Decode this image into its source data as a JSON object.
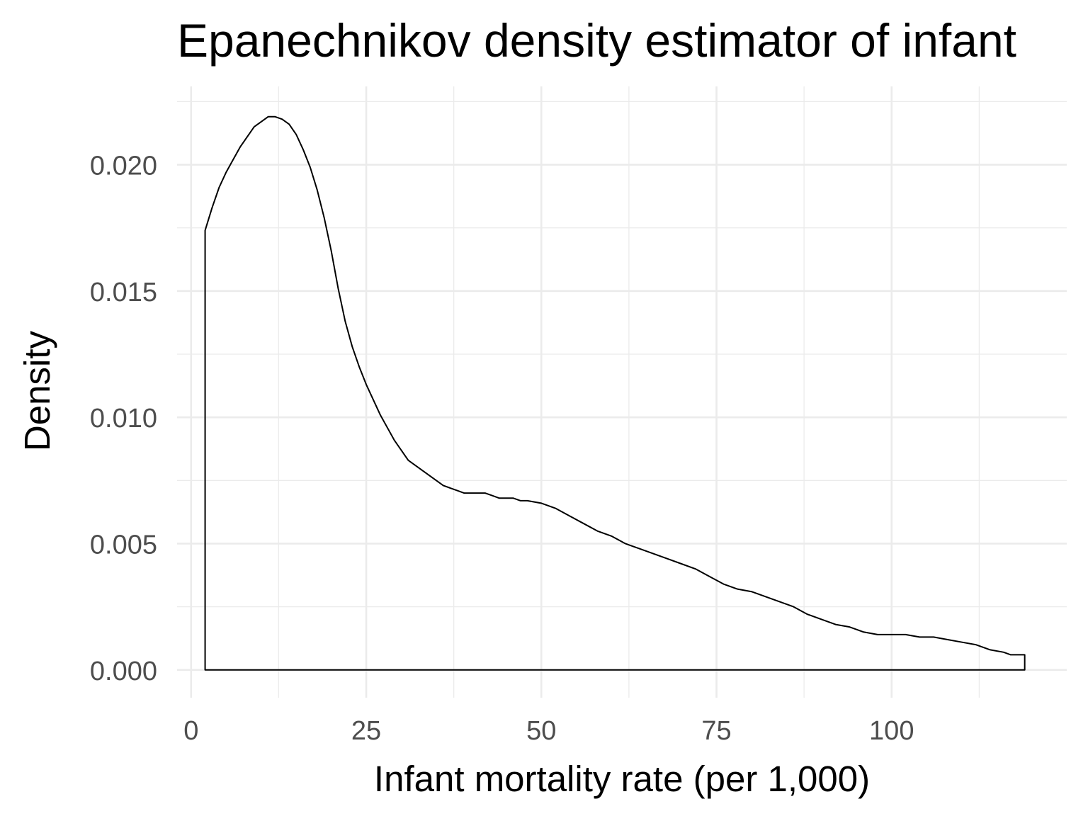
{
  "chart_data": {
    "type": "area",
    "title": "Epanechnikov density estimator of infant",
    "xlabel": "Infant mortality rate (per 1,000)",
    "ylabel": "Density",
    "xlim": [
      -2,
      125
    ],
    "ylim": [
      -0.0011,
      0.0231
    ],
    "x_ticks": [
      0,
      25,
      50,
      75,
      100
    ],
    "x_tick_labels": [
      "0",
      "25",
      "50",
      "75",
      "100"
    ],
    "x_minor_ticks": [
      12.5,
      37.5,
      62.5,
      87.5,
      112.5
    ],
    "y_ticks": [
      0,
      0.005,
      0.01,
      0.015,
      0.02
    ],
    "y_tick_labels": [
      "0.000",
      "0.005",
      "0.010",
      "0.015",
      "0.020"
    ],
    "y_minor_ticks": [
      0.0025,
      0.0075,
      0.0125,
      0.0175,
      0.0225
    ],
    "grid": true,
    "legend": "none",
    "series": [
      {
        "x": [
          2,
          3,
          4,
          5,
          6,
          7,
          8,
          9,
          10,
          11,
          12,
          13,
          14,
          15,
          16,
          17,
          18,
          19,
          20,
          21,
          22,
          23,
          24,
          25,
          26,
          27,
          28,
          29,
          30,
          31,
          32,
          33,
          34,
          35,
          36,
          37,
          38,
          39,
          40,
          42,
          43,
          44,
          45,
          46,
          47,
          48,
          50,
          52,
          54,
          56,
          58,
          60,
          62,
          64,
          66,
          68,
          70,
          72,
          74,
          76,
          78,
          80,
          82,
          84,
          86,
          88,
          90,
          92,
          94,
          96,
          98,
          100,
          102,
          104,
          106,
          108,
          110,
          112,
          114,
          116,
          117,
          118,
          119
        ],
        "y": [
          0.0174,
          0.0183,
          0.0191,
          0.0197,
          0.0202,
          0.0207,
          0.0211,
          0.0215,
          0.0217,
          0.0219,
          0.0219,
          0.0218,
          0.0216,
          0.0212,
          0.0206,
          0.0199,
          0.019,
          0.0179,
          0.0166,
          0.0151,
          0.0138,
          0.0128,
          0.012,
          0.0113,
          0.0107,
          0.0101,
          0.0096,
          0.0091,
          0.0087,
          0.0083,
          0.0081,
          0.0079,
          0.0077,
          0.0075,
          0.0073,
          0.0072,
          0.0071,
          0.007,
          0.007,
          0.007,
          0.0069,
          0.0068,
          0.0068,
          0.0068,
          0.0067,
          0.0067,
          0.0066,
          0.0064,
          0.0061,
          0.0058,
          0.0055,
          0.0053,
          0.005,
          0.0048,
          0.0046,
          0.0044,
          0.0042,
          0.004,
          0.0037,
          0.0034,
          0.0032,
          0.0031,
          0.0029,
          0.0027,
          0.0025,
          0.0022,
          0.002,
          0.0018,
          0.0017,
          0.0015,
          0.0014,
          0.0014,
          0.0014,
          0.0013,
          0.0013,
          0.0012,
          0.0011,
          0.001,
          0.0008,
          0.0007,
          0.0006,
          0.0006,
          0.0006
        ]
      }
    ]
  }
}
